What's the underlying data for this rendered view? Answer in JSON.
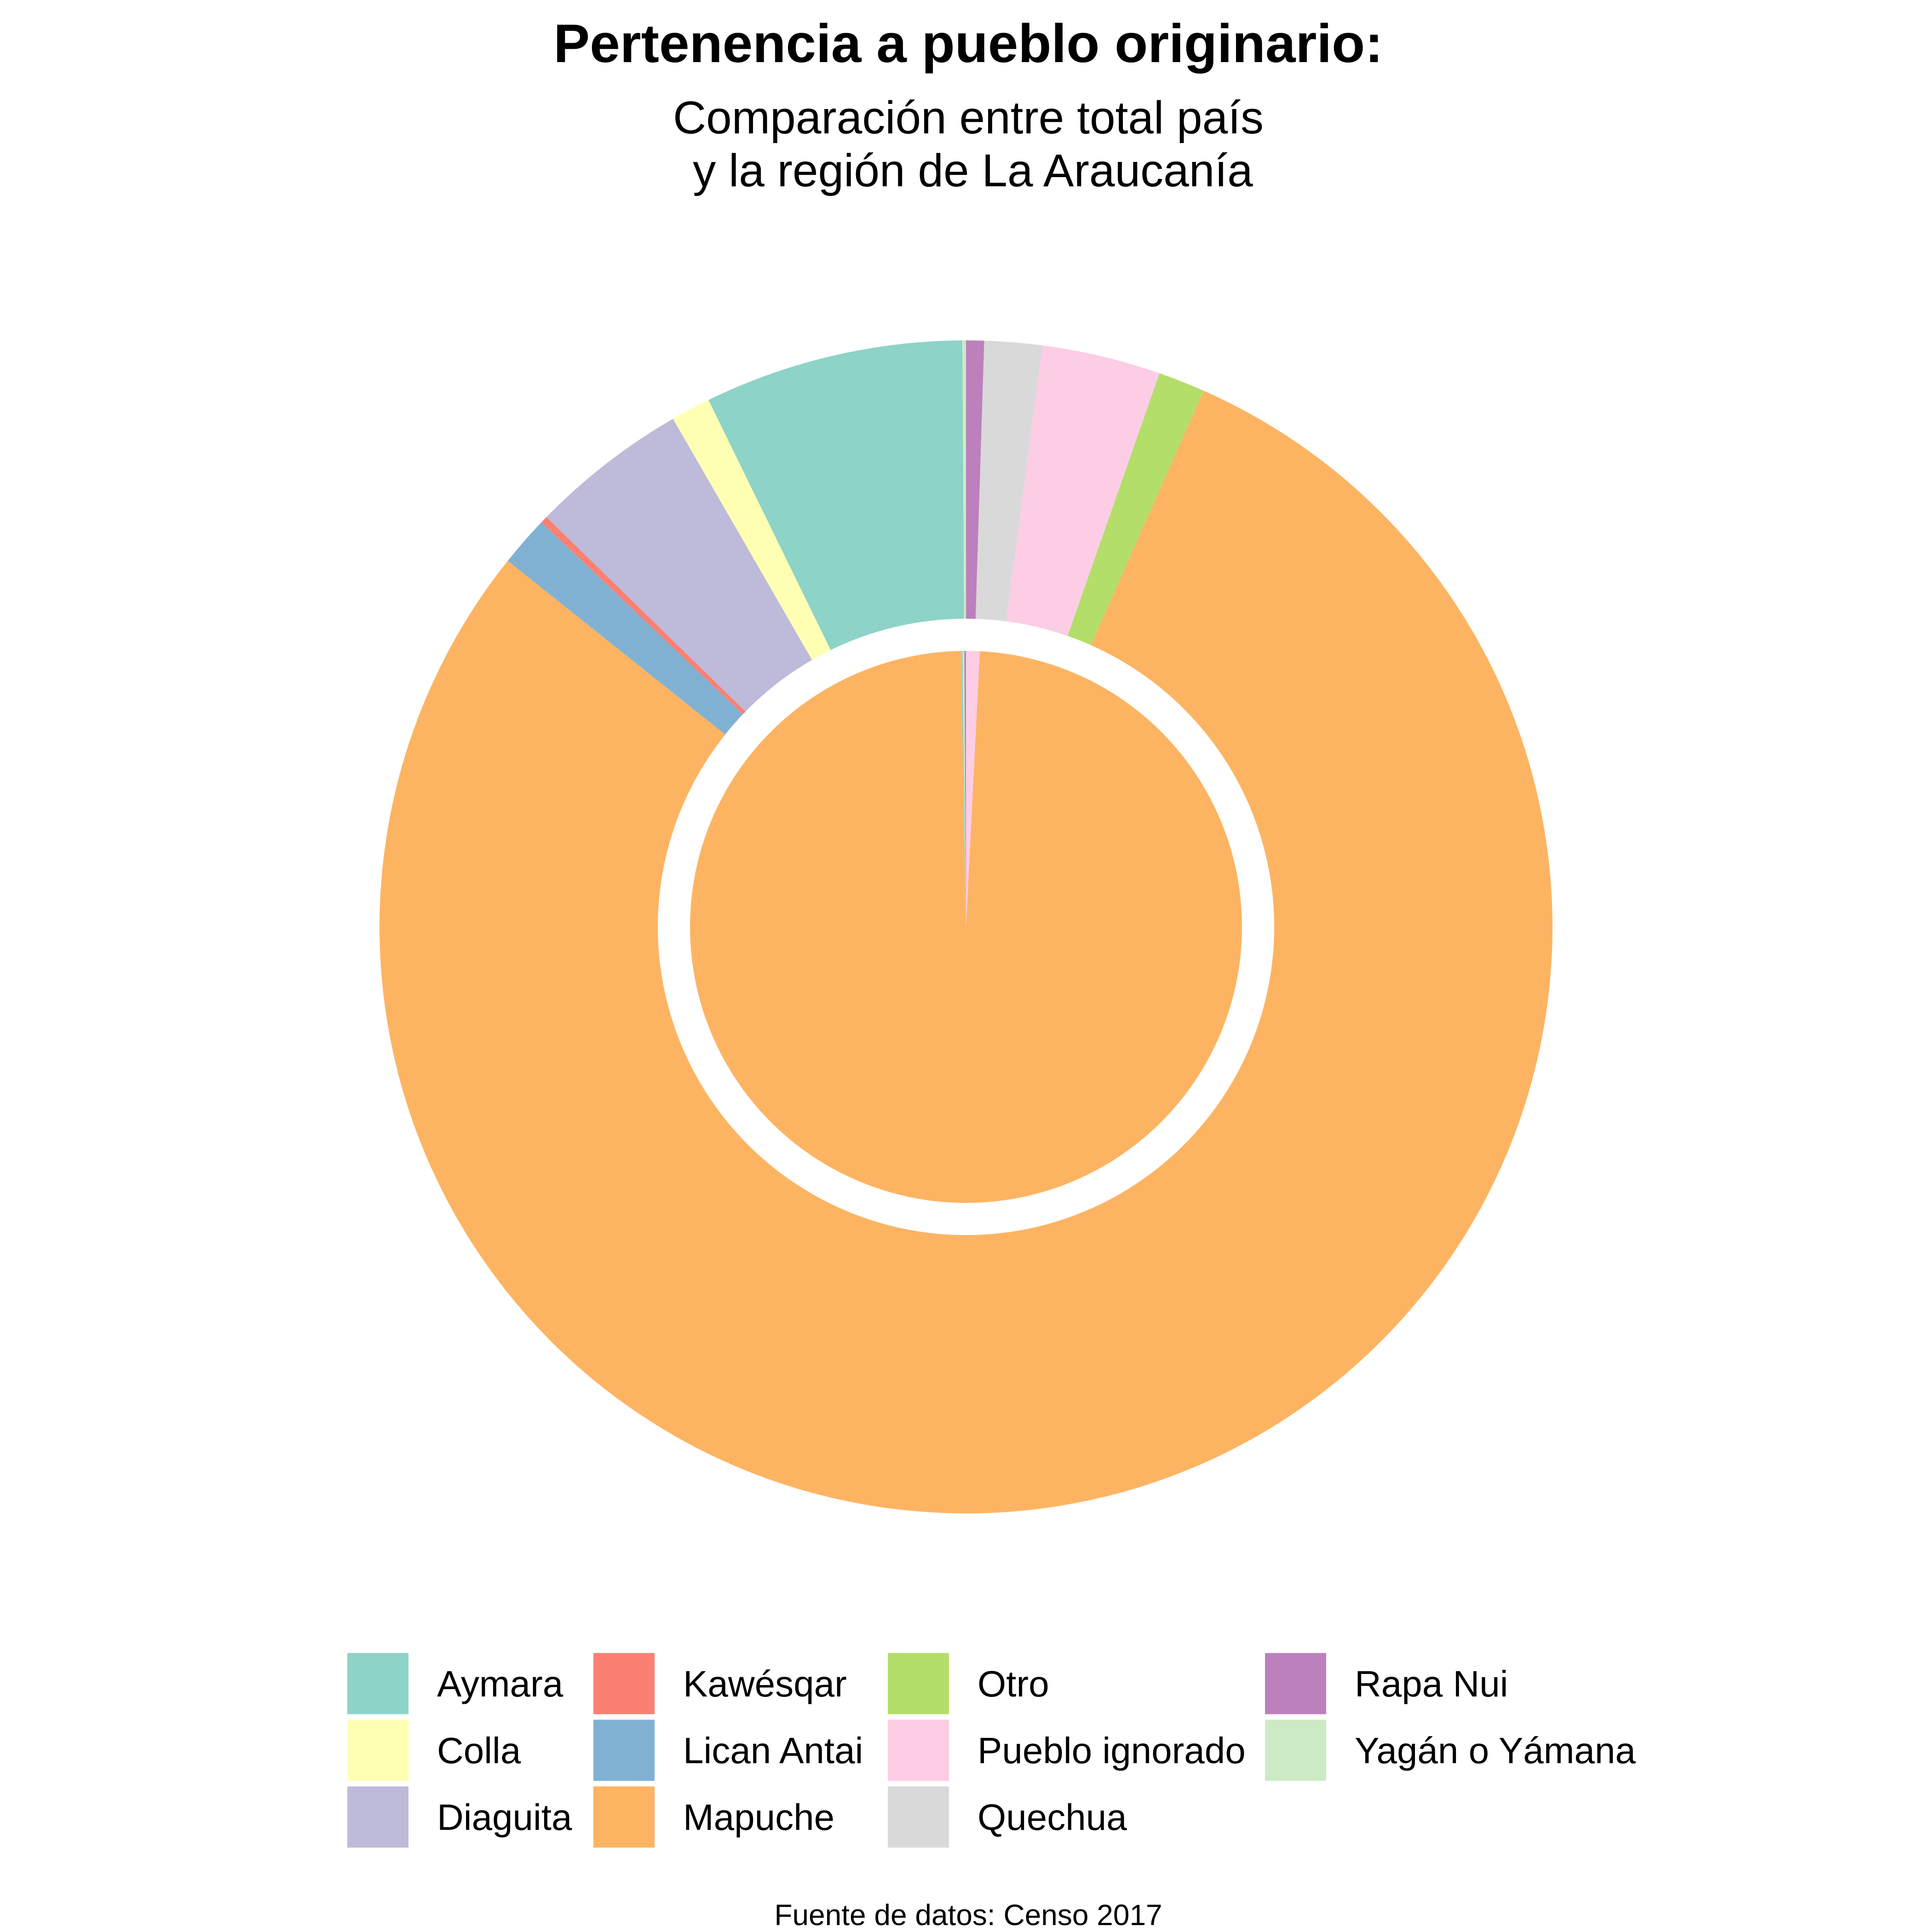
{
  "chart_data": {
    "type": "pie",
    "title": "Pertenencia a pueblo originario:",
    "subtitle_lines": [
      "Comparación entre total país",
      "y la región de La Araucanía"
    ],
    "caption": "Fuente de datos: Censo 2017",
    "categories": [
      "Aymara",
      "Colla",
      "Diaguita",
      "Kawésqar",
      "Lican Antai",
      "Mapuche",
      "Otro",
      "Pueblo ignorado",
      "Quechua",
      "Rapa Nui",
      "Yagán o Yámana"
    ],
    "colors": {
      "Aymara": "#8DD3C7",
      "Colla": "#FFFFB3",
      "Diaguita": "#BEBADA",
      "Kawésqar": "#FB8072",
      "Lican Antai": "#80B1D3",
      "Mapuche": "#FDB462",
      "Otro": "#B3DE69",
      "Pueblo ignorado": "#FCCDE5",
      "Quechua": "#D9D9D9",
      "Rapa Nui": "#BC80BD",
      "Yagán o Yámana": "#CCEBC5"
    },
    "series": [
      {
        "ring": "outer",
        "values": {
          "Rapa Nui": 0.5,
          "Quechua": 1.6,
          "Pueblo ignorado": 3.3,
          "Otro": 1.3,
          "Mapuche": 79.8,
          "Lican Antai": 1.4,
          "Kawésqar": 0.2,
          "Diaguita": 4.4,
          "Colla": 1.1,
          "Aymara": 7.2,
          "Yagán o Yámana": 0.1
        }
      },
      {
        "ring": "inner",
        "values": {
          "Pueblo ignorado": 0.8,
          "Mapuche": 98.9,
          "Aymara": 0.1,
          "Yagán o Yámana": 0.1,
          "Rapa Nui": 0.1
        }
      }
    ],
    "legend": {
      "position": "bottom",
      "columns": [
        [
          "Aymara",
          "Colla",
          "Diaguita"
        ],
        [
          "Kawésqar",
          "Lican Antai",
          "Mapuche"
        ],
        [
          "Otro",
          "Pueblo ignorado",
          "Quechua"
        ],
        [
          "Rapa Nui",
          "Yagán o Yámana"
        ]
      ]
    }
  }
}
